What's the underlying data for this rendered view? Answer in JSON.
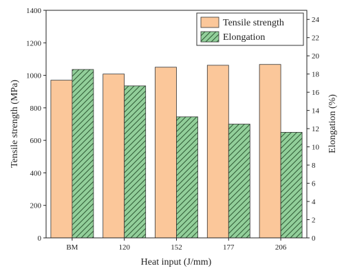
{
  "chart_data": {
    "type": "bar",
    "xlabel": "Heat input (J/mm)",
    "categories": [
      "BM",
      "120",
      "152",
      "177",
      "206"
    ],
    "series": [
      {
        "name": "Tensile strength",
        "axis": "left",
        "color": "#fbc79a",
        "hatch": false,
        "values": [
          970,
          1008,
          1050,
          1062,
          1067
        ]
      },
      {
        "name": "Elongation",
        "axis": "right",
        "color": "#92cf9a",
        "hatch": true,
        "values": [
          18.5,
          16.7,
          13.3,
          12.5,
          11.6
        ]
      }
    ],
    "y_left": {
      "label": "Tensile strength (MPa)",
      "ylim": [
        0,
        1400
      ],
      "ticks": [
        "0",
        "200",
        "400",
        "600",
        "800",
        "1000",
        "1200",
        "1400"
      ]
    },
    "y_right": {
      "label": "Elongation (%)",
      "ylim": [
        0,
        25
      ],
      "ticks": [
        "0",
        "2",
        "4",
        "6",
        "8",
        "10",
        "12",
        "14",
        "16",
        "18",
        "20",
        "22",
        "24"
      ]
    },
    "legend_position": "top-right",
    "grid": false
  }
}
